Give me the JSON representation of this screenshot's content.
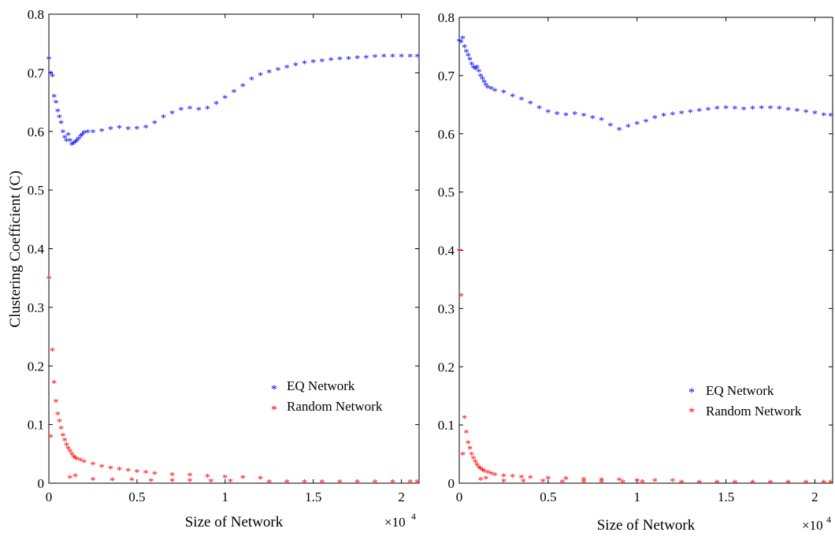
{
  "chart_data": [
    {
      "type": "scatter",
      "title": "",
      "xlabel": "Size of Network",
      "ylabel": "Clustering Coefficient (C)",
      "x_multiplier": "×10",
      "x_multiplier_exp": "4",
      "xlim": [
        0,
        2.1
      ],
      "ylim": [
        0,
        0.8
      ],
      "xticks": [
        0,
        0.5,
        1,
        1.5,
        2
      ],
      "xtick_labels": [
        "0",
        "0.5",
        "1",
        "1.5",
        "2"
      ],
      "yticks": [
        0,
        0.1,
        0.2,
        0.3,
        0.4,
        0.5,
        0.6,
        0.7,
        0.8
      ],
      "ytick_labels": [
        "0",
        "0.1",
        "0.2",
        "0.3",
        "0.4",
        "0.5",
        "0.6",
        "0.7",
        "0.8"
      ],
      "legend_position": "center-right",
      "series": [
        {
          "name": "EQ Network",
          "color": "#0000ff",
          "marker": "*",
          "points": [
            [
              0,
              0.725
            ],
            [
              0.01,
              0.7
            ],
            [
              0.02,
              0.695
            ],
            [
              0.03,
              0.66
            ],
            [
              0.04,
              0.65
            ],
            [
              0.05,
              0.635
            ],
            [
              0.06,
              0.625
            ],
            [
              0.07,
              0.615
            ],
            [
              0.08,
              0.6
            ],
            [
              0.09,
              0.59
            ],
            [
              0.1,
              0.585
            ],
            [
              0.11,
              0.595
            ],
            [
              0.12,
              0.585
            ],
            [
              0.13,
              0.578
            ],
            [
              0.14,
              0.58
            ],
            [
              0.15,
              0.582
            ],
            [
              0.16,
              0.585
            ],
            [
              0.17,
              0.588
            ],
            [
              0.18,
              0.592
            ],
            [
              0.19,
              0.595
            ],
            [
              0.2,
              0.598
            ],
            [
              0.22,
              0.6
            ],
            [
              0.25,
              0.6
            ],
            [
              0.3,
              0.602
            ],
            [
              0.35,
              0.605
            ],
            [
              0.4,
              0.607
            ],
            [
              0.45,
              0.605
            ],
            [
              0.5,
              0.606
            ],
            [
              0.55,
              0.608
            ],
            [
              0.6,
              0.615
            ],
            [
              0.65,
              0.625
            ],
            [
              0.7,
              0.632
            ],
            [
              0.75,
              0.638
            ],
            [
              0.8,
              0.64
            ],
            [
              0.85,
              0.638
            ],
            [
              0.9,
              0.64
            ],
            [
              0.95,
              0.648
            ],
            [
              1.0,
              0.658
            ],
            [
              1.05,
              0.668
            ],
            [
              1.1,
              0.678
            ],
            [
              1.15,
              0.69
            ],
            [
              1.2,
              0.697
            ],
            [
              1.25,
              0.702
            ],
            [
              1.3,
              0.706
            ],
            [
              1.35,
              0.71
            ],
            [
              1.4,
              0.714
            ],
            [
              1.45,
              0.717
            ],
            [
              1.5,
              0.719
            ],
            [
              1.55,
              0.721
            ],
            [
              1.6,
              0.723
            ],
            [
              1.65,
              0.724
            ],
            [
              1.7,
              0.725
            ],
            [
              1.75,
              0.726
            ],
            [
              1.8,
              0.727
            ],
            [
              1.85,
              0.728
            ],
            [
              1.9,
              0.729
            ],
            [
              1.95,
              0.729
            ],
            [
              2.0,
              0.729
            ],
            [
              2.05,
              0.729
            ],
            [
              2.09,
              0.729
            ]
          ]
        },
        {
          "name": "Random Network",
          "color": "#ff0000",
          "marker": "*",
          "points": [
            [
              0,
              0.35
            ],
            [
              0.01,
              0.08
            ],
            [
              0.02,
              0.227
            ],
            [
              0.03,
              0.172
            ],
            [
              0.04,
              0.14
            ],
            [
              0.05,
              0.118
            ],
            [
              0.06,
              0.106
            ],
            [
              0.07,
              0.094
            ],
            [
              0.08,
              0.082
            ],
            [
              0.09,
              0.074
            ],
            [
              0.1,
              0.066
            ],
            [
              0.11,
              0.06
            ],
            [
              0.12,
              0.055
            ],
            [
              0.13,
              0.05
            ],
            [
              0.14,
              0.046
            ],
            [
              0.15,
              0.043
            ],
            [
              0.16,
              0.042
            ],
            [
              0.18,
              0.04
            ],
            [
              0.2,
              0.037
            ],
            [
              0.25,
              0.033
            ],
            [
              0.3,
              0.029
            ],
            [
              0.35,
              0.026
            ],
            [
              0.4,
              0.024
            ],
            [
              0.45,
              0.022
            ],
            [
              0.5,
              0.02
            ],
            [
              0.55,
              0.019
            ],
            [
              0.6,
              0.017
            ],
            [
              0.7,
              0.015
            ],
            [
              0.8,
              0.014
            ],
            [
              0.9,
              0.012
            ],
            [
              1.0,
              0.011
            ],
            [
              1.1,
              0.01
            ],
            [
              1.2,
              0.009
            ],
            [
              0.12,
              0.01
            ],
            [
              0.15,
              0.013
            ],
            [
              0.25,
              0.007
            ],
            [
              0.36,
              0.006
            ],
            [
              0.47,
              0.006
            ],
            [
              0.58,
              0.005
            ],
            [
              0.7,
              0.005
            ],
            [
              0.8,
              0.005
            ],
            [
              0.92,
              0.004
            ],
            [
              1.03,
              0.004
            ],
            [
              1.25,
              0.003
            ],
            [
              1.35,
              0.003
            ],
            [
              1.45,
              0.003
            ],
            [
              1.55,
              0.003
            ],
            [
              1.65,
              0.003
            ],
            [
              1.75,
              0.003
            ],
            [
              1.85,
              0.003
            ],
            [
              1.95,
              0.003
            ],
            [
              2.05,
              0.003
            ],
            [
              2.09,
              0.003
            ]
          ]
        }
      ]
    },
    {
      "type": "scatter",
      "title": "",
      "xlabel": "Size of Network",
      "ylabel": "",
      "x_multiplier": "×10",
      "x_multiplier_exp": "4",
      "xlim": [
        0,
        2.1
      ],
      "ylim": [
        0,
        0.8
      ],
      "xticks": [
        0,
        0.5,
        1,
        1.5,
        2
      ],
      "xtick_labels": [
        "0",
        "0.5",
        "1",
        "1.5",
        "2"
      ],
      "yticks": [
        0,
        0.1,
        0.2,
        0.3,
        0.4,
        0.5,
        0.6,
        0.7,
        0.8
      ],
      "ytick_labels": [
        "0",
        "0.1",
        "0.2",
        "0.3",
        "0.4",
        "0.5",
        "0.6",
        "0.7",
        "0.8"
      ],
      "legend_position": "center-right",
      "series": [
        {
          "name": "EQ Network",
          "color": "#0000ff",
          "marker": "*",
          "points": [
            [
              0,
              0.76
            ],
            [
              0.01,
              0.758
            ],
            [
              0.02,
              0.765
            ],
            [
              0.03,
              0.75
            ],
            [
              0.04,
              0.742
            ],
            [
              0.05,
              0.735
            ],
            [
              0.06,
              0.728
            ],
            [
              0.07,
              0.72
            ],
            [
              0.08,
              0.715
            ],
            [
              0.09,
              0.712
            ],
            [
              0.1,
              0.715
            ],
            [
              0.11,
              0.708
            ],
            [
              0.12,
              0.7
            ],
            [
              0.13,
              0.695
            ],
            [
              0.14,
              0.69
            ],
            [
              0.15,
              0.684
            ],
            [
              0.16,
              0.68
            ],
            [
              0.18,
              0.678
            ],
            [
              0.2,
              0.675
            ],
            [
              0.25,
              0.672
            ],
            [
              0.3,
              0.665
            ],
            [
              0.35,
              0.66
            ],
            [
              0.4,
              0.653
            ],
            [
              0.45,
              0.645
            ],
            [
              0.5,
              0.638
            ],
            [
              0.55,
              0.635
            ],
            [
              0.6,
              0.633
            ],
            [
              0.65,
              0.635
            ],
            [
              0.7,
              0.632
            ],
            [
              0.75,
              0.628
            ],
            [
              0.8,
              0.625
            ],
            [
              0.85,
              0.615
            ],
            [
              0.9,
              0.608
            ],
            [
              0.95,
              0.613
            ],
            [
              1.0,
              0.618
            ],
            [
              1.05,
              0.622
            ],
            [
              1.1,
              0.628
            ],
            [
              1.15,
              0.632
            ],
            [
              1.2,
              0.634
            ],
            [
              1.25,
              0.636
            ],
            [
              1.3,
              0.638
            ],
            [
              1.35,
              0.64
            ],
            [
              1.4,
              0.642
            ],
            [
              1.45,
              0.644
            ],
            [
              1.5,
              0.645
            ],
            [
              1.55,
              0.644
            ],
            [
              1.6,
              0.643
            ],
            [
              1.65,
              0.644
            ],
            [
              1.7,
              0.645
            ],
            [
              1.75,
              0.645
            ],
            [
              1.8,
              0.644
            ],
            [
              1.85,
              0.642
            ],
            [
              1.9,
              0.64
            ],
            [
              1.95,
              0.638
            ],
            [
              2.0,
              0.636
            ],
            [
              2.05,
              0.633
            ],
            [
              2.09,
              0.632
            ]
          ]
        },
        {
          "name": "Random Network",
          "color": "#ff0000",
          "marker": "*",
          "points": [
            [
              0,
              0.4
            ],
            [
              0.01,
              0.323
            ],
            [
              0.02,
              0.05
            ],
            [
              0.03,
              0.113
            ],
            [
              0.04,
              0.088
            ],
            [
              0.05,
              0.07
            ],
            [
              0.06,
              0.06
            ],
            [
              0.07,
              0.05
            ],
            [
              0.08,
              0.043
            ],
            [
              0.09,
              0.037
            ],
            [
              0.1,
              0.032
            ],
            [
              0.11,
              0.028
            ],
            [
              0.12,
              0.025
            ],
            [
              0.13,
              0.023
            ],
            [
              0.14,
              0.021
            ],
            [
              0.16,
              0.019
            ],
            [
              0.18,
              0.017
            ],
            [
              0.2,
              0.015
            ],
            [
              0.25,
              0.013
            ],
            [
              0.3,
              0.012
            ],
            [
              0.35,
              0.011
            ],
            [
              0.4,
              0.01
            ],
            [
              0.5,
              0.009
            ],
            [
              0.6,
              0.008
            ],
            [
              0.7,
              0.007
            ],
            [
              0.8,
              0.006
            ],
            [
              0.9,
              0.006
            ],
            [
              1.0,
              0.005
            ],
            [
              1.1,
              0.005
            ],
            [
              1.2,
              0.005
            ],
            [
              0.12,
              0.007
            ],
            [
              0.15,
              0.009
            ],
            [
              0.25,
              0.004
            ],
            [
              0.36,
              0.004
            ],
            [
              0.47,
              0.004
            ],
            [
              0.58,
              0.003
            ],
            [
              0.7,
              0.003
            ],
            [
              0.8,
              0.003
            ],
            [
              0.92,
              0.003
            ],
            [
              1.03,
              0.003
            ],
            [
              1.25,
              0.002
            ],
            [
              1.35,
              0.002
            ],
            [
              1.45,
              0.002
            ],
            [
              1.55,
              0.002
            ],
            [
              1.65,
              0.002
            ],
            [
              1.75,
              0.002
            ],
            [
              1.85,
              0.002
            ],
            [
              1.95,
              0.002
            ],
            [
              2.05,
              0.002
            ],
            [
              2.09,
              0.002
            ]
          ]
        }
      ]
    }
  ]
}
